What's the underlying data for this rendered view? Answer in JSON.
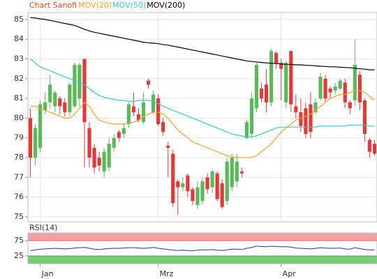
{
  "chart_data": [
    {
      "type": "candlestick",
      "title": "Chart Sanofi",
      "title_color": "#e8491d",
      "categories": [
        null,
        null,
        "Jan",
        null,
        null,
        null,
        null,
        null,
        null,
        null,
        null,
        null,
        null,
        null,
        null,
        null,
        null,
        null,
        null,
        null,
        null,
        null,
        null,
        null,
        null,
        null,
        "Mrz",
        null,
        null,
        null,
        null,
        null,
        null,
        null,
        null,
        null,
        null,
        null,
        null,
        null,
        null,
        null,
        null,
        null,
        null,
        null,
        null,
        null,
        null,
        null,
        null,
        "Apr",
        null,
        null,
        null,
        null,
        null,
        null,
        null,
        null,
        null,
        null,
        null,
        null,
        null,
        null,
        null,
        null,
        null,
        null,
        null
      ],
      "open": [
        80,
        78,
        78.5,
        80.4,
        80.8,
        80.6,
        81,
        80.8,
        80.3,
        80.6,
        81,
        83,
        79.5,
        78.5,
        78,
        77.3,
        77.5,
        78.5,
        79.3,
        79.2,
        79.7,
        80.6,
        80.2,
        79.8,
        81.9,
        80.3,
        81,
        79.8,
        78.6,
        78.2,
        76.8,
        76.5,
        77.1,
        76.4,
        75.6,
        75.8,
        77,
        76.5,
        77.2,
        76.7,
        75.8,
        76.5,
        76.8,
        77.3,
        79,
        79.2,
        80.5,
        81.5,
        81.7,
        80.8,
        83.3,
        82.8,
        80.8,
        83.4,
        80.6,
        80.3,
        80.5,
        80.7,
        80.3,
        81,
        82,
        81.5,
        81.4,
        81.5,
        81.8,
        80.8,
        80.9,
        82.2,
        80.9,
        78.9,
        78.7
      ],
      "high": [
        80.5,
        79.7,
        80.9,
        81.3,
        82.2,
        81.4,
        81.1,
        81,
        81.8,
        82.8,
        82.8,
        83,
        79.8,
        78.7,
        78.3,
        78.5,
        79,
        79.2,
        79.4,
        79.7,
        80.8,
        81.3,
        80.5,
        81.3,
        82,
        81.4,
        81.2,
        80,
        78.8,
        78.4,
        76.9,
        77,
        77.2,
        76.5,
        76.8,
        77,
        77.2,
        77.4,
        77.3,
        76.9,
        78,
        78.2,
        78.2,
        77.5,
        79.9,
        81.3,
        82.8,
        81.8,
        82.5,
        83.5,
        83.4,
        83,
        82.9,
        83.4,
        81.2,
        81,
        80.8,
        81.3,
        81,
        82.3,
        82.2,
        81.6,
        81.8,
        82,
        82,
        80.9,
        84,
        82.4,
        81,
        79,
        78.9
      ],
      "low": [
        77,
        77.6,
        78.3,
        80.2,
        80.5,
        80.3,
        80.2,
        80.1,
        80.1,
        80.5,
        80.6,
        77.5,
        77.5,
        77.2,
        77.3,
        77,
        77.3,
        78.3,
        78.8,
        79,
        79.5,
        80.1,
        79.8,
        79.7,
        81.5,
        80.2,
        79.6,
        79.1,
        77,
        75.5,
        75.1,
        76.3,
        76,
        75.6,
        75.4,
        75.6,
        76.2,
        76.2,
        75.8,
        75.4,
        75.6,
        76.3,
        76.5,
        77,
        78.9,
        79,
        80.3,
        80.8,
        80.3,
        80.6,
        82.5,
        80.9,
        80.5,
        80.3,
        80,
        79.3,
        79,
        79,
        80.2,
        80.9,
        80.8,
        81,
        81.2,
        81.4,
        80.5,
        80.2,
        80.6,
        80.4,
        78.8,
        78,
        78.1
      ],
      "close": [
        78,
        79.5,
        80.7,
        80.8,
        81.7,
        81.3,
        80.6,
        80.3,
        81.7,
        82.7,
        82.7,
        79.8,
        78,
        77.5,
        77.6,
        78.3,
        78.7,
        79,
        79,
        79.5,
        80.7,
        80.3,
        79.9,
        80.8,
        81.7,
        81.2,
        79.7,
        79.3,
        78.5,
        75.7,
        76.5,
        76.7,
        76.3,
        75.8,
        76.5,
        76.8,
        76.4,
        77.3,
        75.9,
        75.5,
        77.8,
        78,
        77.8,
        77.2,
        79.8,
        81,
        82.7,
        81,
        80.8,
        83.4,
        82.8,
        82.5,
        82.8,
        80.7,
        80.3,
        79.6,
        79.2,
        79.3,
        80.8,
        82.1,
        81,
        81.3,
        81.6,
        81.9,
        80.8,
        80.5,
        82.7,
        80.8,
        79.2,
        78.3,
        78.2
      ],
      "up_color": "#5cb85c",
      "down_color": "#e03a3a",
      "series": [
        {
          "name": "MOV(20)",
          "color": "#f5a623",
          "values": [
            80.6,
            80.6,
            80.5,
            80.4,
            80.3,
            80.2,
            80.1,
            80.0,
            80.0,
            80.2,
            80.5,
            80.8,
            80.6,
            80.2,
            79.9,
            79.8,
            79.75,
            79.7,
            79.7,
            79.7,
            79.75,
            79.8,
            79.9,
            80.1,
            80.2,
            80.3,
            80.3,
            80.2,
            80.0,
            79.7,
            79.4,
            79.2,
            79.0,
            78.8,
            78.7,
            78.6,
            78.5,
            78.4,
            78.3,
            78.2,
            78.1,
            78.05,
            78.0,
            78.0,
            78.0,
            78.0,
            78.1,
            78.3,
            78.5,
            78.7,
            79.0,
            79.3,
            79.5,
            79.7,
            79.9,
            80.0,
            80.1,
            80.2,
            80.4,
            80.6,
            80.8,
            81.0,
            81.1,
            81.2,
            81.2,
            81.3,
            81.4,
            81.4,
            81.3,
            81.1,
            80.9
          ]
        },
        {
          "name": "MOV(50)",
          "color": "#33cccc",
          "values": [
            83.0,
            82.8,
            82.6,
            82.5,
            82.4,
            82.3,
            82.2,
            82.1,
            82.0,
            81.9,
            81.8,
            81.7,
            81.5,
            81.3,
            81.15,
            81.05,
            81.0,
            80.95,
            80.9,
            80.9,
            80.85,
            80.85,
            80.9,
            80.9,
            80.9,
            80.85,
            80.75,
            80.6,
            80.5,
            80.4,
            80.3,
            80.2,
            80.1,
            80.0,
            79.9,
            79.8,
            79.7,
            79.6,
            79.5,
            79.4,
            79.3,
            79.2,
            79.15,
            79.1,
            79.05,
            79.05,
            79.1,
            79.2,
            79.3,
            79.4,
            79.5,
            79.55,
            79.55,
            79.55,
            79.55,
            79.55,
            79.55,
            79.55,
            79.55,
            79.6,
            79.6,
            79.6,
            79.6,
            79.6,
            79.6,
            79.65,
            79.65,
            79.65,
            79.65,
            79.6,
            79.6
          ]
        },
        {
          "name": "MOV(200)",
          "color": "#000000",
          "values": [
            85.1,
            85.07,
            85.03,
            85.0,
            84.95,
            84.9,
            84.85,
            84.8,
            84.75,
            84.7,
            84.6,
            84.5,
            84.42,
            84.35,
            84.3,
            84.25,
            84.2,
            84.15,
            84.1,
            84.05,
            84.0,
            83.95,
            83.9,
            83.85,
            83.82,
            83.8,
            83.77,
            83.73,
            83.7,
            83.65,
            83.6,
            83.55,
            83.5,
            83.45,
            83.4,
            83.35,
            83.3,
            83.25,
            83.2,
            83.15,
            83.1,
            83.05,
            83.0,
            82.95,
            82.9,
            82.87,
            82.85,
            82.82,
            82.8,
            82.78,
            82.77,
            82.75,
            82.73,
            82.72,
            82.7,
            82.7,
            82.68,
            82.67,
            82.65,
            82.63,
            82.62,
            82.6,
            82.6,
            82.58,
            82.57,
            82.55,
            82.53,
            82.5,
            82.48,
            82.45,
            82.45
          ]
        }
      ],
      "ylim": [
        74.75,
        85.35
      ],
      "yticks": [
        75,
        76,
        77,
        78,
        79,
        80,
        81,
        82,
        83,
        84,
        85
      ],
      "grid": true
    },
    {
      "type": "line",
      "title": "RSI(14)",
      "color": "#2233aa",
      "upper_band_color": "#f4a0a0",
      "lower_band_color": "#77cc77",
      "values": [
        42,
        45,
        47,
        48,
        49,
        50,
        49,
        48,
        49,
        51,
        52,
        53,
        50,
        47,
        46,
        48,
        49,
        50,
        50,
        51,
        52,
        52,
        51,
        50,
        51,
        53,
        50,
        48,
        46,
        44,
        43,
        44,
        43,
        42,
        44,
        45,
        45,
        46,
        44,
        43,
        45,
        47,
        47,
        46,
        50,
        53,
        57,
        56,
        55,
        57,
        56,
        55,
        55,
        54,
        51,
        50,
        49,
        48,
        50,
        52,
        51,
        50,
        50,
        51,
        48,
        47,
        52,
        49,
        46,
        45,
        45
      ],
      "ylim": [
        0,
        100
      ],
      "yticks": [
        25,
        75
      ]
    }
  ]
}
